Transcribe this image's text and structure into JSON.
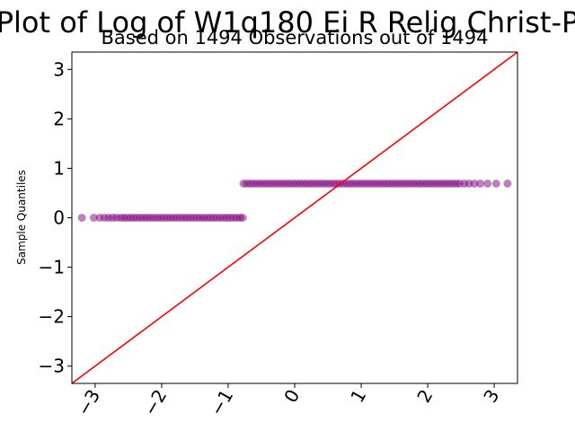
{
  "chart_data": {
    "type": "scatter",
    "title": "Plot of Log of W1q180 Ei R Relig Christ-P",
    "subtitle": "Based on 1494 Observations out of 1494",
    "xlabel": "",
    "ylabel": "Sample Quantiles",
    "xlim": [
      -3.35,
      3.35
    ],
    "ylim": [
      -3.35,
      3.35
    ],
    "x_ticks": [
      -3,
      -2,
      -1,
      0,
      1,
      2,
      3
    ],
    "x_tick_labels": [
      "−3",
      "−2",
      "−1",
      "0",
      "1",
      "2",
      "3"
    ],
    "y_ticks": [
      -3,
      -2,
      -1,
      0,
      1,
      2,
      3
    ],
    "y_tick_labels": [
      "−3",
      "−2",
      "−1",
      "0",
      "1",
      "2",
      "3"
    ],
    "grid": false,
    "series": [
      {
        "marker_color": "#800080",
        "marker_alpha": 0.5,
        "clusters": [
          {
            "y": 0.0,
            "x": [
              -3.2,
              -3.02,
              -2.93,
              -2.86,
              -2.8,
              -2.74,
              -2.68,
              -2.62,
              -2.57,
              -2.52,
              -2.47,
              -2.42,
              -2.37,
              -2.32,
              -2.27,
              -2.22,
              -2.17,
              -2.12,
              -2.07,
              -2.02,
              -1.97,
              -1.92,
              -1.87,
              -1.82,
              -1.77,
              -1.72,
              -1.67,
              -1.62,
              -1.57,
              -1.52,
              -1.47,
              -1.42,
              -1.37,
              -1.32,
              -1.27,
              -1.22,
              -1.17,
              -1.12,
              -1.07,
              -1.02,
              -0.97,
              -0.92,
              -0.87,
              -0.82,
              -0.78
            ]
          },
          {
            "y": 0.69,
            "x": [
              -0.77,
              -0.72,
              -0.67,
              -0.62,
              -0.57,
              -0.52,
              -0.47,
              -0.42,
              -0.37,
              -0.32,
              -0.27,
              -0.22,
              -0.17,
              -0.12,
              -0.07,
              -0.02,
              0.03,
              0.08,
              0.13,
              0.18,
              0.23,
              0.28,
              0.33,
              0.38,
              0.43,
              0.48,
              0.53,
              0.58,
              0.63,
              0.68,
              0.73,
              0.78,
              0.83,
              0.88,
              0.93,
              0.98,
              1.03,
              1.08,
              1.13,
              1.18,
              1.23,
              1.28,
              1.33,
              1.38,
              1.43,
              1.48,
              1.53,
              1.58,
              1.63,
              1.68,
              1.73,
              1.78,
              1.83,
              1.88,
              1.93,
              1.98,
              2.03,
              2.08,
              2.13,
              2.18,
              2.23,
              2.28,
              2.33,
              2.38,
              2.43,
              2.48,
              2.55,
              2.62,
              2.7,
              2.79,
              2.9,
              3.03,
              3.2
            ]
          }
        ]
      }
    ],
    "reference_line": {
      "slope": 1,
      "intercept": 0,
      "color": "#ff0000"
    }
  }
}
